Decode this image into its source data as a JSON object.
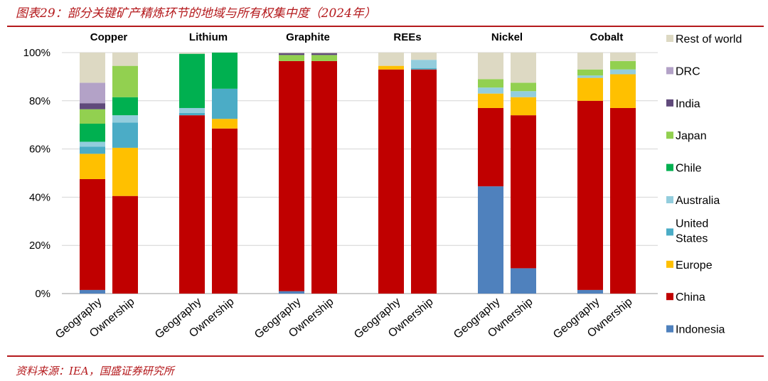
{
  "header": {
    "title": "图表29：部分关键矿产精炼环节的地域与所有权集中度（2024年）"
  },
  "footer": {
    "source": "资料来源：IEA，国盛证券研究所"
  },
  "chart_data": {
    "type": "bar",
    "stacked": true,
    "ylim": [
      0,
      100
    ],
    "yticks": [
      "0%",
      "20%",
      "40%",
      "60%",
      "80%",
      "100%"
    ],
    "legend_position": "right",
    "categories": [
      "Geography",
      "Ownership"
    ],
    "stack_order": [
      "Indonesia",
      "China",
      "Europe",
      "United States",
      "Australia",
      "Chile",
      "Japan",
      "India",
      "DRC",
      "Rest of world"
    ],
    "legend": [
      {
        "name": "Rest of world",
        "color": "#ddd9c3"
      },
      {
        "name": "DRC",
        "color": "#b3a2c7"
      },
      {
        "name": "India",
        "color": "#604a7b"
      },
      {
        "name": "Japan",
        "color": "#92d050"
      },
      {
        "name": "Chile",
        "color": "#00b050"
      },
      {
        "name": "Australia",
        "color": "#93cddd"
      },
      {
        "name": "United States",
        "color": "#4bacc6"
      },
      {
        "name": "Europe",
        "color": "#ffc000"
      },
      {
        "name": "China",
        "color": "#c00000"
      },
      {
        "name": "Indonesia",
        "color": "#4f81bd"
      }
    ],
    "panels": [
      {
        "name": "Copper",
        "bars": [
          {
            "category": "Geography",
            "values": {
              "Indonesia": 1.5,
              "China": 46,
              "Europe": 10.5,
              "United States": 3,
              "Australia": 2,
              "Chile": 7.5,
              "Japan": 6,
              "India": 2.5,
              "DRC": 8.5,
              "Rest of world": 12.5
            }
          },
          {
            "category": "Ownership",
            "values": {
              "Indonesia": 0,
              "China": 40.5,
              "Europe": 20,
              "United States": 10.5,
              "Australia": 3,
              "Chile": 7.5,
              "Japan": 13,
              "India": 0,
              "DRC": 0,
              "Rest of world": 5.5
            }
          }
        ]
      },
      {
        "name": "Lithium",
        "bars": [
          {
            "category": "Geography",
            "values": {
              "Indonesia": 0,
              "China": 74,
              "Europe": 0,
              "United States": 1,
              "Australia": 2,
              "Chile": 22.5,
              "Japan": 0,
              "India": 0,
              "DRC": 0,
              "Rest of world": 0.5
            }
          },
          {
            "category": "Ownership",
            "values": {
              "Indonesia": 0,
              "China": 68.5,
              "Europe": 4,
              "United States": 12.5,
              "Australia": 0,
              "Chile": 15,
              "Japan": 0,
              "India": 0,
              "DRC": 0,
              "Rest of world": 0
            }
          }
        ]
      },
      {
        "name": "Graphite",
        "bars": [
          {
            "category": "Geography",
            "values": {
              "Indonesia": 1,
              "China": 95.5,
              "Europe": 0,
              "United States": 0,
              "Australia": 0,
              "Chile": 0,
              "Japan": 2.5,
              "India": 0.8,
              "DRC": 0,
              "Rest of world": 0.2
            }
          },
          {
            "category": "Ownership",
            "values": {
              "Indonesia": 0,
              "China": 96.5,
              "Europe": 0,
              "United States": 0,
              "Australia": 0,
              "Chile": 0,
              "Japan": 2.5,
              "India": 0.8,
              "DRC": 0,
              "Rest of world": 0.2
            }
          }
        ]
      },
      {
        "name": "REEs",
        "bars": [
          {
            "category": "Geography",
            "values": {
              "Indonesia": 0,
              "China": 93,
              "Europe": 1.5,
              "United States": 0,
              "Australia": 0,
              "Chile": 0,
              "Japan": 0,
              "India": 0,
              "DRC": 0,
              "Rest of world": 5.5
            }
          },
          {
            "category": "Ownership",
            "values": {
              "Indonesia": 0,
              "China": 93,
              "Europe": 0,
              "United States": 0.5,
              "Australia": 3.5,
              "Chile": 0,
              "Japan": 0,
              "India": 0,
              "DRC": 0,
              "Rest of world": 3
            }
          }
        ]
      },
      {
        "name": "Nickel",
        "bars": [
          {
            "category": "Geography",
            "values": {
              "Indonesia": 44.5,
              "China": 32.5,
              "Europe": 6,
              "United States": 0,
              "Australia": 2.5,
              "Chile": 0,
              "Japan": 3.5,
              "India": 0,
              "DRC": 0,
              "Rest of world": 11
            }
          },
          {
            "category": "Ownership",
            "values": {
              "Indonesia": 10.5,
              "China": 63.5,
              "Europe": 7.5,
              "United States": 0,
              "Australia": 2.5,
              "Chile": 0,
              "Japan": 3.5,
              "India": 0,
              "DRC": 0,
              "Rest of world": 12.5
            }
          }
        ]
      },
      {
        "name": "Cobalt",
        "bars": [
          {
            "category": "Geography",
            "values": {
              "Indonesia": 1.5,
              "China": 78.5,
              "Europe": 9.5,
              "United States": 0,
              "Australia": 1,
              "Chile": 0,
              "Japan": 2.5,
              "India": 0,
              "DRC": 0,
              "Rest of world": 7
            }
          },
          {
            "category": "Ownership",
            "values": {
              "Indonesia": 0,
              "China": 77,
              "Europe": 14,
              "United States": 0,
              "Australia": 2,
              "Chile": 0,
              "Japan": 3.5,
              "India": 0,
              "DRC": 0,
              "Rest of world": 3.5
            }
          }
        ]
      }
    ]
  }
}
